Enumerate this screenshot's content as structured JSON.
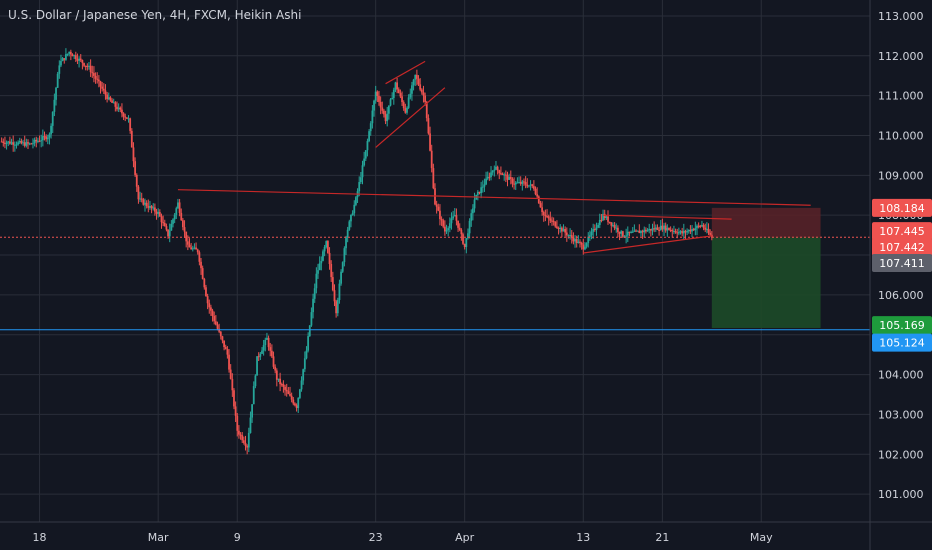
{
  "chart": {
    "title": "U.S. Dollar / Japanese Yen, 4H, FXCM, Heikin Ashi"
  },
  "colors": {
    "background": "#131722",
    "grid": "#2a2e39",
    "up": "#26a69a",
    "down": "#ef5350",
    "stop_zone": "#5a2228",
    "target_zone": "#1d4a28",
    "price_line": "#ef5350",
    "horizontal_level": "#2196f3",
    "trendline": "#c62828",
    "badge_red": "#ef5350",
    "badge_grey": "#5d606b",
    "badge_green": "#1e9b3c",
    "badge_blue": "#2196f3"
  },
  "chart_data": {
    "type": "candlestick",
    "candle_style": "Heikin Ashi",
    "timeframe": "4H",
    "symbol": "U.S. Dollar / Japanese Yen",
    "source": "FXCM",
    "x_tick_labels": [
      "18",
      "Mar",
      "9",
      "23",
      "Apr",
      "13",
      "21",
      "May"
    ],
    "x_tick_dates": [
      "2020-02-18",
      "2020-03-01",
      "2020-03-09",
      "2020-03-23",
      "2020-04-01",
      "2020-04-13",
      "2020-04-21",
      "2020-05-01"
    ],
    "x_range": [
      "2020-02-14",
      "2020-05-12"
    ],
    "y_tick_labels": [
      "113.000",
      "112.000",
      "111.000",
      "110.000",
      "109.000",
      "108.000",
      "107.000",
      "106.000",
      "105.000",
      "104.000",
      "103.000",
      "102.000",
      "101.000"
    ],
    "ylim": [
      100.3,
      113.4
    ],
    "grid": true,
    "price_path": [
      [
        "2020-02-14",
        109.85
      ],
      [
        "2020-02-17",
        109.78
      ],
      [
        "2020-02-19",
        110.0
      ],
      [
        "2020-02-20",
        111.8
      ],
      [
        "2020-02-21",
        112.1
      ],
      [
        "2020-02-23",
        111.7
      ],
      [
        "2020-02-25",
        110.9
      ],
      [
        "2020-02-27",
        110.4
      ],
      [
        "2020-02-28",
        108.4
      ],
      [
        "2020-03-01",
        108.05
      ],
      [
        "2020-03-02",
        107.5
      ],
      [
        "2020-03-03",
        108.3
      ],
      [
        "2020-03-04",
        107.2
      ],
      [
        "2020-03-05",
        107.1
      ],
      [
        "2020-03-06",
        105.8
      ],
      [
        "2020-03-08",
        104.5
      ],
      [
        "2020-03-09",
        102.6
      ],
      [
        "2020-03-10",
        102.2
      ],
      [
        "2020-03-11",
        104.4
      ],
      [
        "2020-03-12",
        104.9
      ],
      [
        "2020-03-13",
        103.9
      ],
      [
        "2020-03-15",
        103.2
      ],
      [
        "2020-03-16",
        104.6
      ],
      [
        "2020-03-17",
        106.5
      ],
      [
        "2020-03-18",
        107.3
      ],
      [
        "2020-03-19",
        105.6
      ],
      [
        "2020-03-20",
        107.5
      ],
      [
        "2020-03-21",
        108.4
      ],
      [
        "2020-03-22",
        109.6
      ],
      [
        "2020-03-23",
        111.1
      ],
      [
        "2020-03-24",
        110.4
      ],
      [
        "2020-03-25",
        111.3
      ],
      [
        "2020-03-26",
        110.6
      ],
      [
        "2020-03-27",
        111.5
      ],
      [
        "2020-03-28",
        110.9
      ],
      [
        "2020-03-29",
        108.3
      ],
      [
        "2020-03-30",
        107.6
      ],
      [
        "2020-03-31",
        108.0
      ],
      [
        "2020-04-01",
        107.2
      ],
      [
        "2020-04-02",
        108.4
      ],
      [
        "2020-04-04",
        109.2
      ],
      [
        "2020-04-06",
        108.8
      ],
      [
        "2020-04-07",
        108.8
      ],
      [
        "2020-04-08",
        108.7
      ],
      [
        "2020-04-09",
        108.0
      ],
      [
        "2020-04-11",
        107.6
      ],
      [
        "2020-04-13",
        107.2
      ],
      [
        "2020-04-15",
        108.0
      ],
      [
        "2020-04-17",
        107.5
      ],
      [
        "2020-04-19",
        107.6
      ],
      [
        "2020-04-21",
        107.7
      ],
      [
        "2020-04-23",
        107.55
      ],
      [
        "2020-04-25",
        107.75
      ],
      [
        "2020-04-26",
        107.445
      ]
    ],
    "last_price": "107.445",
    "horizontal_level": 105.124,
    "position": {
      "entry": 107.442,
      "stop": 108.184,
      "target": 105.169,
      "from": "2020-04-26",
      "to": "2020-05-07"
    },
    "drawings": [
      {
        "from": [
          "2020-03-03",
          108.64
        ],
        "to": [
          "2020-05-06",
          108.25
        ]
      },
      {
        "from": [
          "2020-03-24",
          111.3
        ],
        "to": [
          "2020-03-28",
          111.86
        ]
      },
      {
        "from": [
          "2020-03-23",
          109.7
        ],
        "to": [
          "2020-03-30",
          111.2
        ]
      },
      {
        "from": [
          "2020-04-13",
          107.05
        ],
        "to": [
          "2020-04-26",
          107.48
        ]
      },
      {
        "from": [
          "2020-04-15",
          108.0
        ],
        "to": [
          "2020-04-28",
          107.9
        ]
      }
    ],
    "price_badges": [
      {
        "label": "108.184",
        "value": 108.184,
        "style": "badge_red"
      },
      {
        "label": "107.445",
        "value": 107.6,
        "style": "badge_red"
      },
      {
        "label": "107.442",
        "value": 107.2,
        "style": "badge_red"
      },
      {
        "label": "107.411",
        "value": 106.8,
        "style": "badge_grey"
      },
      {
        "label": "105.169",
        "value": 105.24,
        "style": "badge_green"
      },
      {
        "label": "105.124",
        "value": 104.8,
        "style": "badge_blue"
      }
    ]
  }
}
